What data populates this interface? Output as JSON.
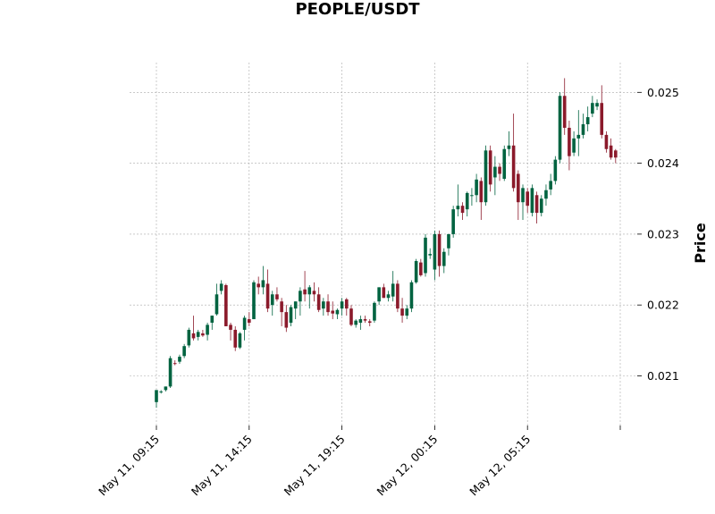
{
  "colors": {
    "up": "#006340",
    "down": "#8b1a2b",
    "grid": "#aaaaaa"
  },
  "chart_data": {
    "type": "candlestick",
    "title": "PEOPLE/USDT",
    "ylabel": "Price",
    "xlabel": "",
    "ylim": [
      0.0203,
      0.02542
    ],
    "yticks": [
      0.021,
      0.022,
      0.023,
      0.024,
      0.025
    ],
    "ytick_labels": [
      "0.021",
      "0.022",
      "0.023",
      "0.024",
      "0.025"
    ],
    "xtick_index": [
      0,
      20,
      40,
      60,
      80,
      100
    ],
    "xtick_labels": [
      "May 11, 09:15",
      "May 11, 14:15",
      "May 11, 19:15",
      "May 12, 00:15",
      "May 12, 05:15",
      ""
    ],
    "grid": true,
    "y_axis_side": "right",
    "candles": [
      [
        0.02063,
        0.0208,
        0.02055,
        0.0208
      ],
      [
        0.02077,
        0.0208,
        0.02075,
        0.02078
      ],
      [
        0.0208,
        0.02085,
        0.02078,
        0.02085
      ],
      [
        0.02085,
        0.02128,
        0.02083,
        0.02125
      ],
      [
        0.02118,
        0.02122,
        0.02115,
        0.02117
      ],
      [
        0.0212,
        0.0213,
        0.02117,
        0.02127
      ],
      [
        0.02128,
        0.02145,
        0.02125,
        0.02142
      ],
      [
        0.02143,
        0.02168,
        0.0214,
        0.02165
      ],
      [
        0.0216,
        0.02185,
        0.0215,
        0.02153
      ],
      [
        0.02155,
        0.02165,
        0.0215,
        0.02162
      ],
      [
        0.0216,
        0.02165,
        0.02155,
        0.02157
      ],
      [
        0.02158,
        0.02175,
        0.0215,
        0.02172
      ],
      [
        0.02175,
        0.02185,
        0.02165,
        0.02185
      ],
      [
        0.02187,
        0.0223,
        0.02185,
        0.02215
      ],
      [
        0.0222,
        0.02235,
        0.02215,
        0.0223
      ],
      [
        0.02228,
        0.0223,
        0.0217,
        0.0217
      ],
      [
        0.02172,
        0.02175,
        0.0215,
        0.02165
      ],
      [
        0.02165,
        0.0217,
        0.02135,
        0.0214
      ],
      [
        0.0214,
        0.02162,
        0.02138,
        0.0216
      ],
      [
        0.02165,
        0.02185,
        0.0215,
        0.02182
      ],
      [
        0.0218,
        0.0219,
        0.0217,
        0.02175
      ],
      [
        0.0218,
        0.02235,
        0.0218,
        0.02232
      ],
      [
        0.0223,
        0.0224,
        0.02215,
        0.02225
      ],
      [
        0.02225,
        0.02255,
        0.02215,
        0.02235
      ],
      [
        0.0223,
        0.0225,
        0.0219,
        0.02195
      ],
      [
        0.022,
        0.0222,
        0.02185,
        0.02215
      ],
      [
        0.02215,
        0.02225,
        0.02205,
        0.02208
      ],
      [
        0.02205,
        0.0221,
        0.0217,
        0.0219
      ],
      [
        0.0219,
        0.022,
        0.02162,
        0.02168
      ],
      [
        0.02175,
        0.022,
        0.0217,
        0.02197
      ],
      [
        0.02195,
        0.02205,
        0.0218,
        0.02205
      ],
      [
        0.02205,
        0.02225,
        0.02185,
        0.0222
      ],
      [
        0.02222,
        0.02248,
        0.02205,
        0.02215
      ],
      [
        0.02215,
        0.02228,
        0.02195,
        0.02225
      ],
      [
        0.0222,
        0.02232,
        0.02205,
        0.02215
      ],
      [
        0.02215,
        0.02225,
        0.0219,
        0.02193
      ],
      [
        0.02195,
        0.0221,
        0.02185,
        0.02205
      ],
      [
        0.02205,
        0.02215,
        0.02185,
        0.0219
      ],
      [
        0.02192,
        0.02205,
        0.0218,
        0.02188
      ],
      [
        0.02187,
        0.02195,
        0.0218,
        0.02193
      ],
      [
        0.02195,
        0.0221,
        0.02185,
        0.02205
      ],
      [
        0.02208,
        0.0221,
        0.02185,
        0.02195
      ],
      [
        0.02195,
        0.022,
        0.0217,
        0.02172
      ],
      [
        0.02172,
        0.0218,
        0.02168,
        0.02178
      ],
      [
        0.02175,
        0.02185,
        0.02165,
        0.0218
      ],
      [
        0.0218,
        0.02185,
        0.02175,
        0.02178
      ],
      [
        0.02177,
        0.0218,
        0.0217,
        0.02175
      ],
      [
        0.02178,
        0.02205,
        0.02175,
        0.02203
      ],
      [
        0.02205,
        0.02225,
        0.022,
        0.02225
      ],
      [
        0.02225,
        0.0223,
        0.0221,
        0.0221
      ],
      [
        0.0221,
        0.0222,
        0.02205,
        0.02215
      ],
      [
        0.02212,
        0.02248,
        0.02205,
        0.0223
      ],
      [
        0.0223,
        0.02235,
        0.0219,
        0.02195
      ],
      [
        0.02195,
        0.0221,
        0.02175,
        0.02185
      ],
      [
        0.02185,
        0.022,
        0.0218,
        0.02195
      ],
      [
        0.02195,
        0.02235,
        0.0219,
        0.02232
      ],
      [
        0.02232,
        0.02265,
        0.0223,
        0.02262
      ],
      [
        0.0226,
        0.02265,
        0.0224,
        0.02242
      ],
      [
        0.02245,
        0.023,
        0.0224,
        0.02295
      ],
      [
        0.0227,
        0.0228,
        0.02265,
        0.02272
      ],
      [
        0.0225,
        0.02305,
        0.02235,
        0.023
      ],
      [
        0.023,
        0.02305,
        0.0224,
        0.02255
      ],
      [
        0.02255,
        0.0228,
        0.02245,
        0.02275
      ],
      [
        0.0228,
        0.023,
        0.0227,
        0.023
      ],
      [
        0.023,
        0.0234,
        0.02295,
        0.02335
      ],
      [
        0.02335,
        0.0237,
        0.02325,
        0.0234
      ],
      [
        0.0234,
        0.02345,
        0.0232,
        0.0233
      ],
      [
        0.02335,
        0.0236,
        0.02325,
        0.02358
      ],
      [
        0.02355,
        0.02365,
        0.0234,
        0.02355
      ],
      [
        0.02355,
        0.02385,
        0.02345,
        0.02377
      ],
      [
        0.02375,
        0.0238,
        0.0232,
        0.02345
      ],
      [
        0.02345,
        0.02425,
        0.0234,
        0.02418
      ],
      [
        0.02418,
        0.02425,
        0.0236,
        0.0237
      ],
      [
        0.0238,
        0.0241,
        0.02355,
        0.02395
      ],
      [
        0.02395,
        0.024,
        0.02375,
        0.02385
      ],
      [
        0.02378,
        0.02425,
        0.02375,
        0.0242
      ],
      [
        0.0242,
        0.02445,
        0.0241,
        0.02425
      ],
      [
        0.02425,
        0.0247,
        0.0236,
        0.02365
      ],
      [
        0.02385,
        0.0239,
        0.0232,
        0.02345
      ],
      [
        0.02345,
        0.0237,
        0.0232,
        0.02365
      ],
      [
        0.0236,
        0.02365,
        0.0233,
        0.0234
      ],
      [
        0.0233,
        0.0237,
        0.02325,
        0.02365
      ],
      [
        0.02355,
        0.0236,
        0.02315,
        0.0233
      ],
      [
        0.0233,
        0.02355,
        0.02325,
        0.0235
      ],
      [
        0.0235,
        0.0237,
        0.0234,
        0.02362
      ],
      [
        0.02363,
        0.02385,
        0.02355,
        0.02375
      ],
      [
        0.02375,
        0.0241,
        0.0237,
        0.02405
      ],
      [
        0.02405,
        0.025,
        0.024,
        0.02495
      ],
      [
        0.02495,
        0.0252,
        0.0244,
        0.0245
      ],
      [
        0.0245,
        0.0246,
        0.0239,
        0.0241
      ],
      [
        0.02415,
        0.02445,
        0.0241,
        0.02435
      ],
      [
        0.02435,
        0.02475,
        0.0241,
        0.0244
      ],
      [
        0.0244,
        0.0247,
        0.02435,
        0.02455
      ],
      [
        0.02455,
        0.0248,
        0.02445,
        0.02465
      ],
      [
        0.0247,
        0.02495,
        0.02465,
        0.02485
      ],
      [
        0.0248,
        0.0249,
        0.02475,
        0.02485
      ],
      [
        0.02485,
        0.0251,
        0.02435,
        0.0244
      ],
      [
        0.0244,
        0.02445,
        0.02415,
        0.0242
      ],
      [
        0.02425,
        0.02435,
        0.02405,
        0.02408
      ],
      [
        0.02418,
        0.0242,
        0.024,
        0.02408
      ]
    ]
  }
}
